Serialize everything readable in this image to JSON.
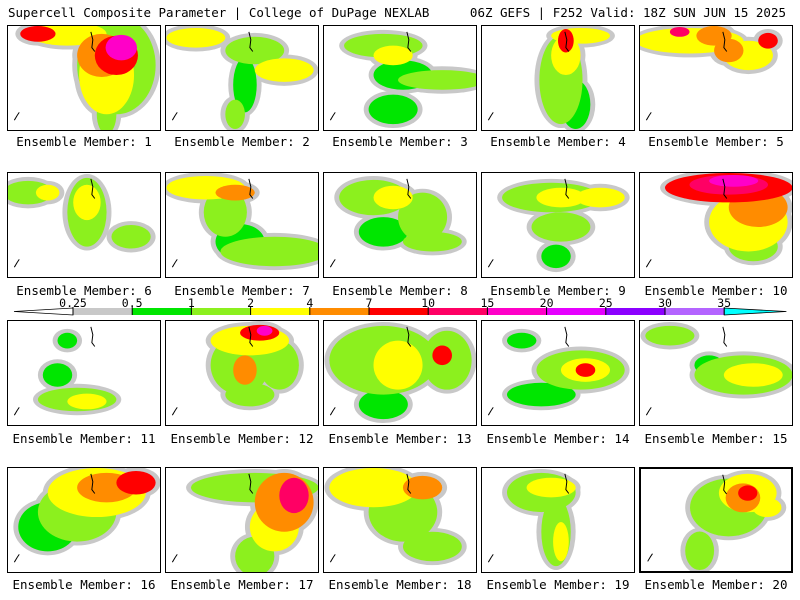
{
  "header": {
    "left": "Supercell Composite Parameter | College of DuPage NEXLAB",
    "right": "06Z GEFS | F252 Valid: 18Z SUN JUN 15 2025"
  },
  "legend": {
    "ticks": [
      "0.25",
      "0.5",
      "1",
      "2",
      "4",
      "7",
      "10",
      "15",
      "20",
      "25",
      "30",
      "35"
    ],
    "colors": [
      "#c8c8c8",
      "#00e600",
      "#8cf01e",
      "#ffff00",
      "#ff8c00",
      "#ff0000",
      "#ff0064",
      "#ff00c8",
      "#e600ff",
      "#8c00ff",
      "#b464ff",
      "#00ffff"
    ]
  },
  "members": [
    {
      "caption": "Ensemble Member: 1",
      "highlight": false
    },
    {
      "caption": "Ensemble Member: 2",
      "highlight": false
    },
    {
      "caption": "Ensemble Member: 3",
      "highlight": false
    },
    {
      "caption": "Ensemble Member: 4",
      "highlight": false
    },
    {
      "caption": "Ensemble Member: 5",
      "highlight": false
    },
    {
      "caption": "Ensemble Member: 6",
      "highlight": false
    },
    {
      "caption": "Ensemble Member: 7",
      "highlight": false
    },
    {
      "caption": "Ensemble Member: 8",
      "highlight": false
    },
    {
      "caption": "Ensemble Member: 9",
      "highlight": false
    },
    {
      "caption": "Ensemble Member: 10",
      "highlight": false
    },
    {
      "caption": "Ensemble Member: 11",
      "highlight": false
    },
    {
      "caption": "Ensemble Member: 12",
      "highlight": false
    },
    {
      "caption": "Ensemble Member: 13",
      "highlight": false
    },
    {
      "caption": "Ensemble Member: 14",
      "highlight": false
    },
    {
      "caption": "Ensemble Member: 15",
      "highlight": false
    },
    {
      "caption": "Ensemble Member: 16",
      "highlight": false
    },
    {
      "caption": "Ensemble Member: 17",
      "highlight": false
    },
    {
      "caption": "Ensemble Member: 18",
      "highlight": false
    },
    {
      "caption": "Ensemble Member: 19",
      "highlight": false
    },
    {
      "caption": "Ensemble Member: 20",
      "highlight": true
    }
  ]
}
